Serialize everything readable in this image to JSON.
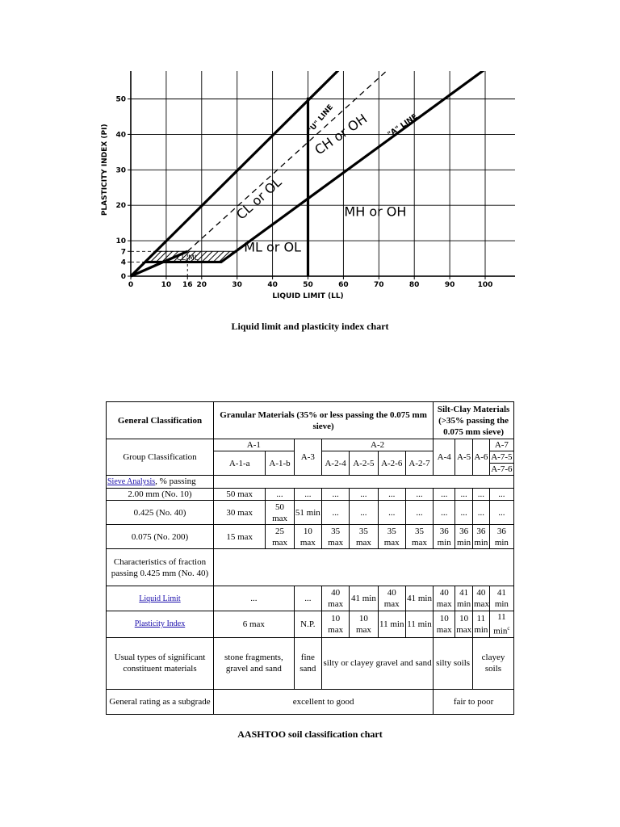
{
  "chart": {
    "x_axis_label": "LIQUID LIMIT (LL)",
    "y_axis_label": "PLASTICITY INDEX (PI)",
    "x_ticks": [
      "0",
      "10",
      "16",
      "20",
      "30",
      "40",
      "50",
      "60",
      "70",
      "80",
      "90",
      "100"
    ],
    "y_ticks": [
      "0",
      "4",
      "7",
      "10",
      "20",
      "30",
      "40",
      "50"
    ],
    "zones": {
      "cl_ol": "CL or OL",
      "ch_oh": "CH or OH",
      "mh_oh": "MH or OH",
      "ml_ol": "ML or OL",
      "cl_ml": "CL-ML"
    },
    "lines": {
      "u_line": "\"U\" LINE",
      "a_line": "\"A\" LINE"
    },
    "caption": "Liquid limit and plasticity index chart"
  },
  "chart_data": {
    "type": "line",
    "title": "",
    "xlabel": "LIQUID LIMIT (LL)",
    "ylabel": "PLASTICITY INDEX (PI)",
    "xlim": [
      0,
      100
    ],
    "ylim": [
      0,
      60
    ],
    "grid": true,
    "series": [
      {
        "name": "\"A\" LINE",
        "x": [
          4,
          25.5,
          100
        ],
        "y": [
          4,
          4,
          58.4
        ],
        "style": "solid"
      },
      {
        "name": "\"U\" LINE",
        "x": [
          16,
          74.5
        ],
        "y": [
          7,
          60
        ],
        "style": "dashed"
      }
    ],
    "verticals": [
      {
        "x": 50,
        "y_range": [
          0,
          50.4
        ]
      }
    ],
    "zones": [
      "CL or OL",
      "CH or OH",
      "MH or OH",
      "ML or OL",
      "CL-ML"
    ]
  },
  "table": {
    "caption": "AASHTOO soil classification chart",
    "general_classification_label": "General Classification",
    "granular_header": "Granular Materials (35% or less passing the 0.075 mm sieve)",
    "silt_clay_header": "Silt-Clay Materials (>35% passing the 0.075 mm sieve)",
    "group_classification_label": "Group Classification",
    "groups": {
      "a1": "A-1",
      "a1a": "A-1-a",
      "a1b": "A-1-b",
      "a3": "A-3",
      "a2": "A-2",
      "a24": "A-2-4",
      "a25": "A-2-5",
      "a26": "A-2-6",
      "a27": "A-2-7",
      "a4": "A-4",
      "a5": "A-5",
      "a6": "A-6",
      "a7": "A-7",
      "a75": "A-7-5",
      "a76": "A-7-6"
    },
    "sieve_link": "Sieve Analysis",
    "sieve_suffix": ", % passing",
    "rows": {
      "no10_label": "2.00 mm (No. 10)",
      "no10": [
        "50 max",
        "...",
        "...",
        "...",
        "...",
        "...",
        "...",
        "...",
        "...",
        "...",
        "..."
      ],
      "no40_label": "0.425 (No. 40)",
      "no40": [
        "30 max",
        "50 max",
        "51 min",
        "...",
        "...",
        "...",
        "...",
        "...",
        "...",
        "...",
        "..."
      ],
      "no200_label": "0.075 (No. 200)",
      "no200": [
        "15 max",
        "25 max",
        "10 max",
        "35 max",
        "35 max",
        "35 max",
        "35 max",
        "36 min",
        "36 min",
        "36 min",
        "36 min"
      ],
      "characteristics_label": "Characteristics of fraction passing 0.425 mm (No. 40)",
      "liquid_limit_link": "Liquid Limit",
      "liquid_limit": [
        "...",
        "...",
        "40 max",
        "41 min",
        "40 max",
        "41 min",
        "40 max",
        "41 min",
        "40 max",
        "41 min"
      ],
      "plasticity_index_link": "Plasticity Index",
      "plasticity_index": [
        "6 max",
        "N.P.",
        "10 max",
        "10 max",
        "11 min",
        "11 min",
        "10 max",
        "10 max",
        "11 min",
        "11 min"
      ],
      "plasticity_index_note": "c",
      "constituents_label": "Usual types of significant constituent materials",
      "constituents": [
        "stone fragments, gravel and sand",
        "fine sand",
        "silty or clayey gravel and sand",
        "silty soils",
        "clayey soils"
      ],
      "rating_label": "General rating as a subgrade",
      "rating": [
        "excellent to good",
        "fair to poor"
      ]
    }
  }
}
